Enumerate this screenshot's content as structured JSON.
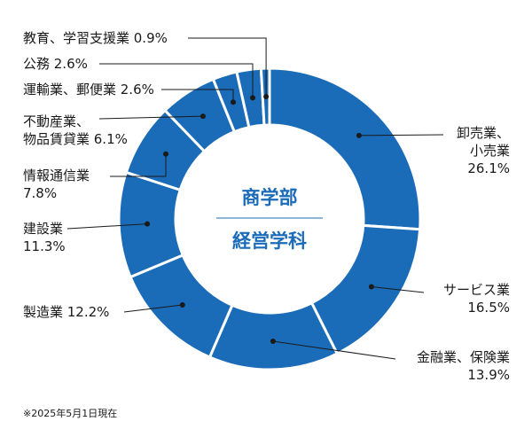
{
  "chart_data": {
    "type": "donut",
    "unit": "%",
    "center_label_top": "商学部",
    "center_label_bottom": "経営学科",
    "slices": [
      {
        "label": [
          "卸売業、",
          "小売業"
        ],
        "value_text": "26.1%",
        "value": 26.1
      },
      {
        "label": [
          "サービス業"
        ],
        "value_text": "16.5%",
        "value": 16.5
      },
      {
        "label": [
          "金融業、保険業"
        ],
        "value_text": "13.9%",
        "value": 13.9
      },
      {
        "label": [
          "製造業"
        ],
        "value_text": "12.2%",
        "value": 12.2
      },
      {
        "label": [
          "建設業"
        ],
        "value_text": "11.3%",
        "value": 11.3
      },
      {
        "label": [
          "情報通信業"
        ],
        "value_text": "7.8%",
        "value": 7.8
      },
      {
        "label": [
          "不動産業、",
          "物品賃貸業"
        ],
        "value_text": "6.1%",
        "value": 6.1
      },
      {
        "label": [
          "運輸業、郵便業"
        ],
        "value_text": "2.6%",
        "value": 2.6
      },
      {
        "label": [
          "公務"
        ],
        "value_text": "2.6%",
        "value": 2.6
      },
      {
        "label": [
          "教育、学習支援業"
        ],
        "value_text": "0.9%",
        "value": 0.9
      }
    ],
    "colors": {
      "slice": "#1a6bb8",
      "separator": "#ffffff",
      "center_text": "#1a6bb8",
      "divider": "#1a6bb8",
      "leader": "#1a1a1a"
    }
  },
  "footnote": "※2025年5月1日現在"
}
